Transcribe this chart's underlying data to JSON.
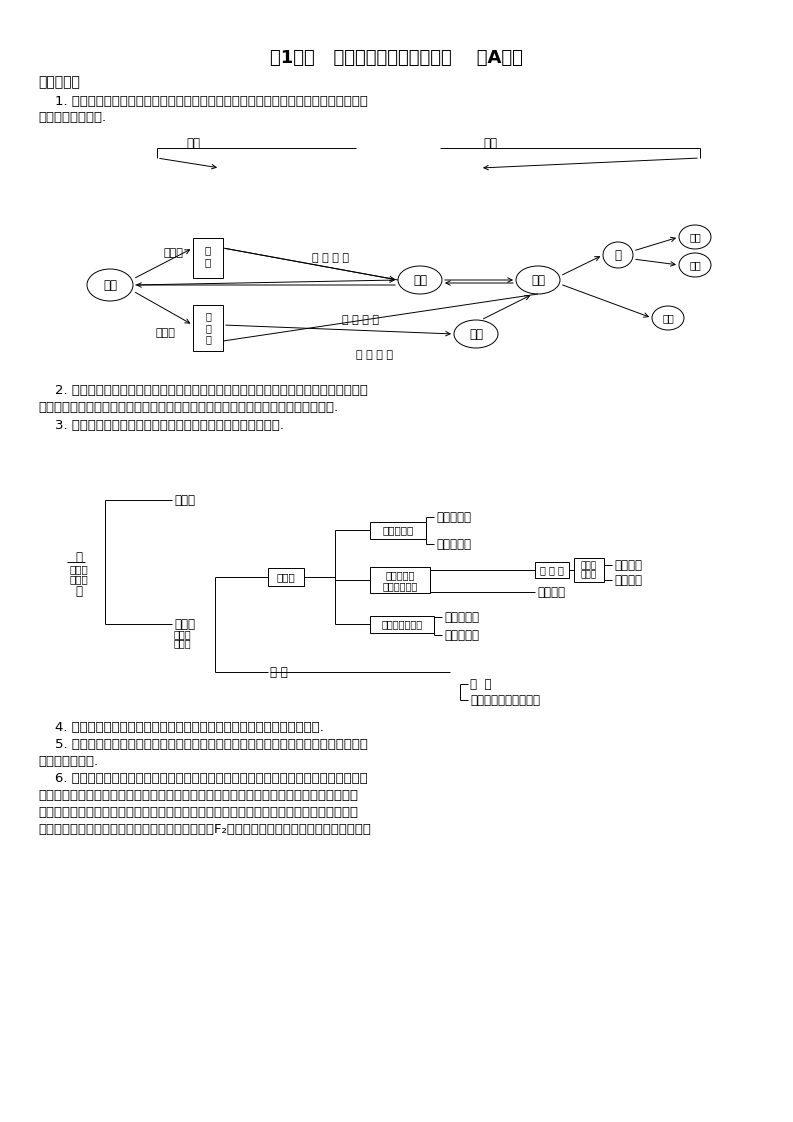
{
  "title": "第1课时   物质的组成、性质和分类    （A卷）",
  "section_header": "考测点导航",
  "para1_line1": "    1. 理解物质的分子、原子、离子、元素等概念的涵义，注意同位素的研究对象为单质；",
  "para1_line2": "了解原子团的定义.",
  "para2_line1": "    2. 理解物理变化与化学变化的区别与联系，注意从微观、宏观、特征、变化范围等角度",
  "para2_line2": "去分析．组成、结构决定性质，而性质反映组成结构，性质决定变化，变化反映性质.",
  "para3": "    3. 理解混合物和纯净物、单质和化合物、金属和非金属的概念.",
  "para4": "    4. 以白磷、红磷为例，了解同素异形体的概念，注意其研究对象为化合物.",
  "para5_line1": "    5. 无机化合物按组成、性质可分为氧化物、酸、碱、盐．理解酸、碱、盐、氧化物的概",
  "para5_line2": "念及其相互联系.",
  "para6_line1": "    6. 学习物质的性质时，不仅要重视物质的化学性质，也要掌握物质的物理性质，如区别",
  "para6_line2": "乙醚、苯和四氯化碳三种液体可根据物理性质（溶解性和密度）来鉴别．学习物质的化学性",
  "para6_line3": "质时，除了要注意同类物质的通性外，还要注意物质的特性，这些特性是我们制备物质、鉴",
  "para6_line4": "别物质的理论依据，如卤素单质都能与水反应，而F₂与水反应较特殊．在判断物质的变化时，",
  "bg_color": "#ffffff"
}
